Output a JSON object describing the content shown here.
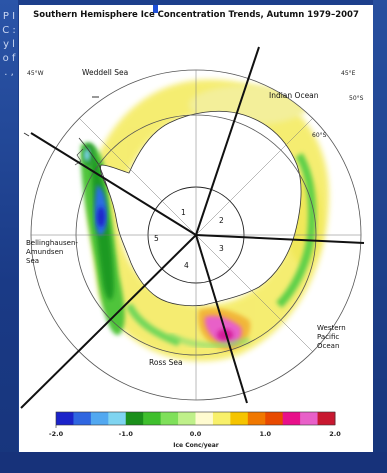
{
  "map": {
    "title": "Southern Hemisphere Ice Concentration Trends, Autumn 1979–2007",
    "regions": {
      "weddell": "Weddell Sea",
      "indian": "Indian Ocean",
      "bellingshausen": "Bellinghausen-\nAmundsen\nSea",
      "ross": "Ross Sea",
      "western_pacific": "Western\nPacific\nOcean"
    },
    "graticule": {
      "lat_50": "50°S",
      "lat_60": "60°S",
      "lon_45w": "45°W",
      "lon_45e": "45°E"
    },
    "sectors": [
      "1",
      "2",
      "3",
      "4",
      "5"
    ]
  },
  "colorbar": {
    "label": "Ice Conc/year",
    "ticks": [
      "-2.0",
      "-1.0",
      "0.0",
      "1.0",
      "2.0"
    ],
    "colors": [
      "#1b23c9",
      "#2f66e0",
      "#52a8f0",
      "#7fd4f0",
      "#1b8f1b",
      "#3fbf2d",
      "#7fe05a",
      "#bff08a",
      "#fffbd0",
      "#f8f06a",
      "#f5c400",
      "#f07800",
      "#e84a00",
      "#e8108a",
      "#e860c8",
      "#c81830"
    ]
  },
  "edge": {
    "text": "P I C : y l o f . ,"
  }
}
